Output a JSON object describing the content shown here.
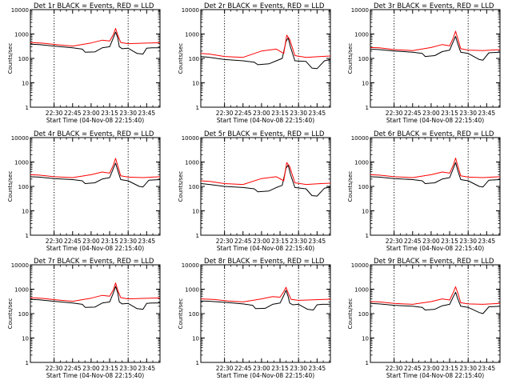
{
  "chart_data": [
    {
      "type": "line",
      "title": "Det 1r BLACK = Events, RED = LLD",
      "xlabel": "Start Time (04-Nov-08 22:15:40)",
      "ylabel": "Counts/sec",
      "x_ticks": [
        "22:30",
        "22:45",
        "23:00",
        "23:15",
        "23:30",
        "23:45"
      ],
      "y_ticks": [
        "1",
        "10",
        "100",
        "1000",
        "10000"
      ],
      "ylim": [
        1,
        10000
      ],
      "yscale": "log",
      "xlim": [
        22.18,
        23.93
      ],
      "vlines": [
        22.5,
        23.5
      ],
      "series": [
        {
          "name": "Events",
          "color": "#000000",
          "x": [
            22.18,
            22.3,
            22.5,
            22.75,
            22.88,
            22.92,
            23.05,
            23.15,
            23.25,
            23.3,
            23.33,
            23.36,
            23.38,
            23.42,
            23.5,
            23.62,
            23.7,
            23.75,
            23.82,
            23.9,
            23.93
          ],
          "y": [
            380,
            370,
            320,
            270,
            240,
            180,
            185,
            270,
            300,
            700,
            1200,
            700,
            300,
            250,
            260,
            160,
            150,
            260,
            270,
            270,
            275
          ]
        },
        {
          "name": "LLD",
          "color": "#ff0000",
          "x": [
            22.18,
            22.35,
            22.55,
            22.75,
            23.0,
            23.15,
            23.25,
            23.3,
            23.33,
            23.36,
            23.4,
            23.5,
            23.7,
            23.93
          ],
          "y": [
            450,
            420,
            360,
            320,
            430,
            560,
            520,
            950,
            1700,
            900,
            450,
            400,
            420,
            440
          ]
        }
      ]
    },
    {
      "type": "line",
      "title": "Det 2r BLACK = Events, RED = LLD",
      "xlabel": "Start Time (04-Nov-08 22:15:40)",
      "ylabel": "Counts/sec",
      "x_ticks": [
        "22:30",
        "22:45",
        "23:00",
        "23:15",
        "23:30",
        "23:45"
      ],
      "y_ticks": [
        "1",
        "10",
        "100",
        "1000",
        "10000"
      ],
      "ylim": [
        1,
        10000
      ],
      "yscale": "log",
      "xlim": [
        22.18,
        23.93
      ],
      "vlines": [
        22.5,
        23.5
      ],
      "series": [
        {
          "name": "Events",
          "color": "#000000",
          "x": [
            22.18,
            22.3,
            22.5,
            22.75,
            22.9,
            22.95,
            23.1,
            23.2,
            23.28,
            23.33,
            23.36,
            23.39,
            23.45,
            23.6,
            23.68,
            23.75,
            23.85,
            23.93
          ],
          "y": [
            120,
            110,
            90,
            80,
            70,
            55,
            60,
            80,
            100,
            500,
            700,
            300,
            80,
            75,
            40,
            38,
            80,
            90
          ]
        },
        {
          "name": "LLD",
          "color": "#ff0000",
          "x": [
            22.18,
            22.3,
            22.5,
            22.75,
            23.0,
            23.2,
            23.3,
            23.34,
            23.38,
            23.45,
            23.6,
            23.8,
            23.93
          ],
          "y": [
            160,
            150,
            120,
            110,
            200,
            240,
            160,
            900,
            600,
            130,
            110,
            120,
            125
          ]
        }
      ]
    },
    {
      "type": "line",
      "title": "Det 3r BLACK = Events, RED = LLD",
      "xlabel": "Start Time (04-Nov-08 22:15:40)",
      "ylabel": "Counts/sec",
      "x_ticks": [
        "22:30",
        "22:45",
        "23:00",
        "23:15",
        "23:30",
        "23:45"
      ],
      "y_ticks": [
        "1",
        "10",
        "100",
        "1000",
        "10000"
      ],
      "ylim": [
        1,
        10000
      ],
      "yscale": "log",
      "xlim": [
        22.18,
        23.93
      ],
      "vlines": [
        22.5,
        23.5
      ],
      "series": [
        {
          "name": "Events",
          "color": "#000000",
          "x": [
            22.18,
            22.3,
            22.5,
            22.75,
            22.88,
            22.92,
            23.05,
            23.15,
            23.25,
            23.3,
            23.33,
            23.36,
            23.4,
            23.5,
            23.65,
            23.7,
            23.78,
            23.85,
            23.93
          ],
          "y": [
            240,
            230,
            200,
            180,
            160,
            120,
            130,
            190,
            220,
            500,
            800,
            400,
            180,
            160,
            90,
            85,
            170,
            175,
            180
          ]
        },
        {
          "name": "LLD",
          "color": "#ff0000",
          "x": [
            22.18,
            22.3,
            22.5,
            22.75,
            23.0,
            23.15,
            23.25,
            23.3,
            23.33,
            23.36,
            23.4,
            23.5,
            23.7,
            23.93
          ],
          "y": [
            280,
            270,
            230,
            210,
            280,
            370,
            330,
            700,
            1300,
            650,
            250,
            220,
            210,
            230
          ]
        }
      ]
    },
    {
      "type": "line",
      "title": "Det 4r BLACK = Events, RED = LLD",
      "xlabel": "Start Time (04-Nov-08 22:15:40)",
      "ylabel": "Counts/sec",
      "x_ticks": [
        "22:30",
        "22:45",
        "23:00",
        "23:15",
        "23:30",
        "23:45"
      ],
      "y_ticks": [
        "1",
        "10",
        "100",
        "1000",
        "10000"
      ],
      "ylim": [
        1,
        10000
      ],
      "yscale": "log",
      "xlim": [
        22.18,
        23.93
      ],
      "vlines": [
        22.5,
        23.5
      ],
      "series": [
        {
          "name": "Events",
          "color": "#000000",
          "x": [
            22.18,
            22.3,
            22.5,
            22.75,
            22.88,
            22.92,
            23.05,
            23.15,
            23.25,
            23.3,
            23.33,
            23.36,
            23.4,
            23.5,
            23.65,
            23.7,
            23.78,
            23.85,
            23.93
          ],
          "y": [
            250,
            240,
            210,
            190,
            170,
            130,
            140,
            200,
            230,
            550,
            900,
            450,
            190,
            170,
            100,
            95,
            180,
            185,
            190
          ]
        },
        {
          "name": "LLD",
          "color": "#ff0000",
          "x": [
            22.18,
            22.3,
            22.5,
            22.75,
            23.0,
            23.15,
            23.25,
            23.3,
            23.33,
            23.36,
            23.4,
            23.5,
            23.7,
            23.93
          ],
          "y": [
            300,
            290,
            250,
            230,
            300,
            390,
            350,
            750,
            1400,
            700,
            270,
            240,
            230,
            250
          ]
        }
      ]
    },
    {
      "type": "line",
      "title": "Det 5r BLACK = Events, RED = LLD",
      "xlabel": "Start Time (04-Nov-08 22:15:40)",
      "ylabel": "Counts/sec",
      "x_ticks": [
        "22:30",
        "22:45",
        "23:00",
        "23:15",
        "23:30",
        "23:45"
      ],
      "y_ticks": [
        "1",
        "10",
        "100",
        "1000",
        "10000"
      ],
      "ylim": [
        1,
        10000
      ],
      "yscale": "log",
      "xlim": [
        22.18,
        23.93
      ],
      "vlines": [
        22.5,
        23.5
      ],
      "series": [
        {
          "name": "Events",
          "color": "#000000",
          "x": [
            22.18,
            22.3,
            22.5,
            22.75,
            22.9,
            22.95,
            23.1,
            23.2,
            23.28,
            23.33,
            23.36,
            23.39,
            23.45,
            23.6,
            23.68,
            23.75,
            23.85,
            23.93
          ],
          "y": [
            130,
            120,
            100,
            90,
            80,
            60,
            65,
            90,
            110,
            550,
            750,
            320,
            90,
            80,
            42,
            40,
            85,
            95
          ]
        },
        {
          "name": "LLD",
          "color": "#ff0000",
          "x": [
            22.18,
            22.3,
            22.5,
            22.75,
            23.0,
            23.2,
            23.3,
            23.34,
            23.38,
            23.45,
            23.6,
            23.8,
            23.93
          ],
          "y": [
            170,
            160,
            130,
            120,
            210,
            250,
            170,
            950,
            650,
            140,
            120,
            130,
            135
          ]
        }
      ]
    },
    {
      "type": "line",
      "title": "Det 6r BLACK = Events, RED = LLD",
      "xlabel": "Start Time (04-Nov-08 22:15:40)",
      "ylabel": "Counts/sec",
      "x_ticks": [
        "22:30",
        "22:45",
        "23:00",
        "23:15",
        "23:30",
        "23:45"
      ],
      "y_ticks": [
        "1",
        "10",
        "100",
        "1000",
        "10000"
      ],
      "ylim": [
        1,
        10000
      ],
      "yscale": "log",
      "xlim": [
        22.18,
        23.93
      ],
      "vlines": [
        22.5,
        23.5
      ],
      "series": [
        {
          "name": "Events",
          "color": "#000000",
          "x": [
            22.18,
            22.3,
            22.5,
            22.75,
            22.88,
            22.92,
            23.05,
            23.15,
            23.25,
            23.3,
            23.33,
            23.36,
            23.4,
            23.5,
            23.65,
            23.7,
            23.78,
            23.85,
            23.93
          ],
          "y": [
            250,
            240,
            210,
            190,
            170,
            130,
            140,
            200,
            230,
            550,
            950,
            450,
            190,
            170,
            100,
            95,
            180,
            185,
            190
          ]
        },
        {
          "name": "LLD",
          "color": "#ff0000",
          "x": [
            22.18,
            22.3,
            22.5,
            22.75,
            23.0,
            23.15,
            23.25,
            23.3,
            23.33,
            23.36,
            23.4,
            23.5,
            23.7,
            23.93
          ],
          "y": [
            300,
            290,
            250,
            230,
            300,
            390,
            350,
            750,
            1450,
            700,
            270,
            240,
            230,
            250
          ]
        }
      ]
    },
    {
      "type": "line",
      "title": "Det 7r BLACK = Events, RED = LLD",
      "xlabel": "Start Time (04-Nov-08 22:15:40)",
      "ylabel": "Counts/sec",
      "x_ticks": [
        "22:30",
        "22:45",
        "23:00",
        "23:15",
        "23:30",
        "23:45"
      ],
      "y_ticks": [
        "1",
        "10",
        "100",
        "1000",
        "10000"
      ],
      "ylim": [
        1,
        10000
      ],
      "yscale": "log",
      "xlim": [
        22.18,
        23.93
      ],
      "vlines": [
        22.5,
        23.5
      ],
      "series": [
        {
          "name": "Events",
          "color": "#000000",
          "x": [
            22.18,
            22.3,
            22.5,
            22.75,
            22.88,
            22.92,
            23.05,
            23.15,
            23.25,
            23.3,
            23.33,
            23.36,
            23.38,
            23.42,
            23.5,
            23.62,
            23.7,
            23.75,
            23.82,
            23.9,
            23.93
          ],
          "y": [
            380,
            370,
            320,
            270,
            240,
            180,
            185,
            270,
            300,
            700,
            1300,
            700,
            300,
            250,
            260,
            160,
            150,
            260,
            270,
            270,
            275
          ]
        },
        {
          "name": "LLD",
          "color": "#ff0000",
          "x": [
            22.18,
            22.35,
            22.55,
            22.75,
            23.0,
            23.15,
            23.25,
            23.3,
            23.33,
            23.36,
            23.4,
            23.5,
            23.7,
            23.93
          ],
          "y": [
            450,
            420,
            360,
            320,
            430,
            560,
            520,
            950,
            1800,
            900,
            450,
            400,
            420,
            440
          ]
        }
      ]
    },
    {
      "type": "line",
      "title": "Det 8r BLACK = Events, RED = LLD",
      "xlabel": "Start Time (04-Nov-08 22:15:40)",
      "ylabel": "Counts/sec",
      "x_ticks": [
        "22:30",
        "22:45",
        "23:00",
        "23:15",
        "23:30",
        "23:45"
      ],
      "y_ticks": [
        "1",
        "10",
        "100",
        "1000",
        "10000"
      ],
      "ylim": [
        1,
        10000
      ],
      "yscale": "log",
      "xlim": [
        22.18,
        23.93
      ],
      "vlines": [
        22.5,
        23.5
      ],
      "series": [
        {
          "name": "Events",
          "color": "#000000",
          "x": [
            22.18,
            22.3,
            22.5,
            22.75,
            22.88,
            22.92,
            23.05,
            23.15,
            23.25,
            23.3,
            23.33,
            23.36,
            23.38,
            23.42,
            23.5,
            23.62,
            23.7,
            23.75,
            23.82,
            23.9,
            23.93
          ],
          "y": [
            330,
            320,
            290,
            250,
            220,
            160,
            165,
            240,
            270,
            550,
            900,
            500,
            270,
            230,
            240,
            150,
            140,
            230,
            240,
            240,
            245
          ]
        },
        {
          "name": "LLD",
          "color": "#ff0000",
          "x": [
            22.18,
            22.35,
            22.55,
            22.75,
            23.0,
            23.15,
            23.25,
            23.3,
            23.33,
            23.36,
            23.4,
            23.5,
            23.7,
            23.93
          ],
          "y": [
            400,
            380,
            330,
            300,
            400,
            500,
            470,
            800,
            1200,
            700,
            380,
            350,
            370,
            390
          ]
        }
      ]
    },
    {
      "type": "line",
      "title": "Det 9r BLACK = Events, RED = LLD",
      "xlabel": "Start Time (04-Nov-08 22:15:40)",
      "ylabel": "Counts/sec",
      "x_ticks": [
        "22:30",
        "22:45",
        "23:00",
        "23:15",
        "23:30",
        "23:45"
      ],
      "y_ticks": [
        "1",
        "10",
        "100",
        "1000",
        "10000"
      ],
      "ylim": [
        1,
        10000
      ],
      "yscale": "log",
      "xlim": [
        22.18,
        23.93
      ],
      "vlines": [
        22.5,
        23.5
      ],
      "series": [
        {
          "name": "Events",
          "color": "#000000",
          "x": [
            22.18,
            22.3,
            22.5,
            22.75,
            22.88,
            22.92,
            23.05,
            23.15,
            23.25,
            23.3,
            23.33,
            23.36,
            23.4,
            23.5,
            23.65,
            23.7,
            23.78,
            23.85,
            23.93
          ],
          "y": [
            260,
            250,
            220,
            200,
            180,
            140,
            150,
            210,
            240,
            500,
            750,
            400,
            200,
            180,
            110,
            100,
            190,
            195,
            200
          ]
        },
        {
          "name": "LLD",
          "color": "#ff0000",
          "x": [
            22.18,
            22.3,
            22.5,
            22.75,
            23.0,
            23.15,
            23.25,
            23.3,
            23.33,
            23.36,
            23.4,
            23.5,
            23.7,
            23.93
          ],
          "y": [
            310,
            300,
            260,
            240,
            310,
            400,
            360,
            750,
            1250,
            700,
            280,
            250,
            240,
            260
          ]
        }
      ]
    }
  ]
}
